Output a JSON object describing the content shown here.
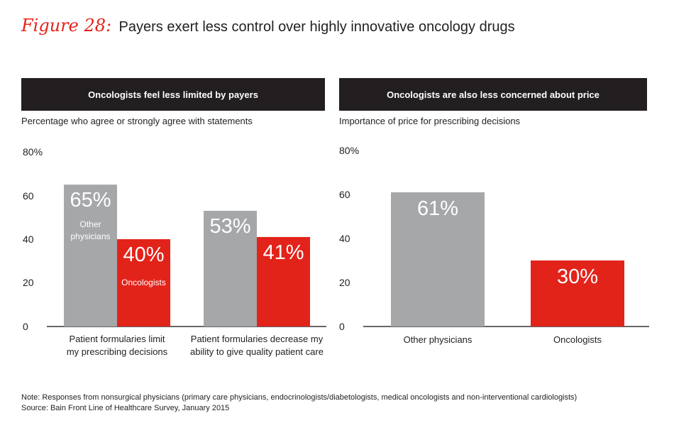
{
  "figure": {
    "label": "Figure 28:",
    "title": "Payers exert less control over highly innovative oncology drugs"
  },
  "colors": {
    "gray": "#a6a7a9",
    "red": "#e2231a",
    "header": "#231f20",
    "axis": "#333333"
  },
  "chart_data": [
    {
      "type": "bar",
      "title": "Oncologists feel less limited by payers",
      "subtitle": "Percentage who agree or strongly agree with statements",
      "y_ticks": [
        "80%",
        "60",
        "40",
        "20",
        "0"
      ],
      "ylim": [
        0,
        80
      ],
      "categories": [
        [
          "Patient formularies limit",
          "my prescribing decisions"
        ],
        [
          "Patient formularies decrease my",
          "ability to give quality patient care"
        ]
      ],
      "series": [
        {
          "name": "Other physicians",
          "name_lines": [
            "Other",
            "physicians"
          ],
          "color": "#a6a7a9",
          "values": [
            65,
            53
          ],
          "labels": [
            "65%",
            "53%"
          ]
        },
        {
          "name": "Oncologists",
          "name_lines": [
            "Oncologists"
          ],
          "color": "#e2231a",
          "values": [
            40,
            41
          ],
          "labels": [
            "40%",
            "41%"
          ]
        }
      ]
    },
    {
      "type": "bar",
      "title": "Oncologists are also less concerned about price",
      "subtitle": "Importance of price for prescribing decisions",
      "y_ticks": [
        "80%",
        "60",
        "40",
        "20",
        "0"
      ],
      "ylim": [
        0,
        80
      ],
      "categories": [
        "Other physicians",
        "Oncologists"
      ],
      "values": [
        61,
        30
      ],
      "labels": [
        "61%",
        "30%"
      ],
      "colors": [
        "#a6a7a9",
        "#e2231a"
      ]
    }
  ],
  "notes": {
    "note": "Note: Responses from nonsurgical physicians (primary care physicians, endocrinologists/diabetologists, medical oncologists and non-interventional cardiologists)",
    "source": "Source: Bain Front Line of Healthcare Survey, January 2015"
  }
}
